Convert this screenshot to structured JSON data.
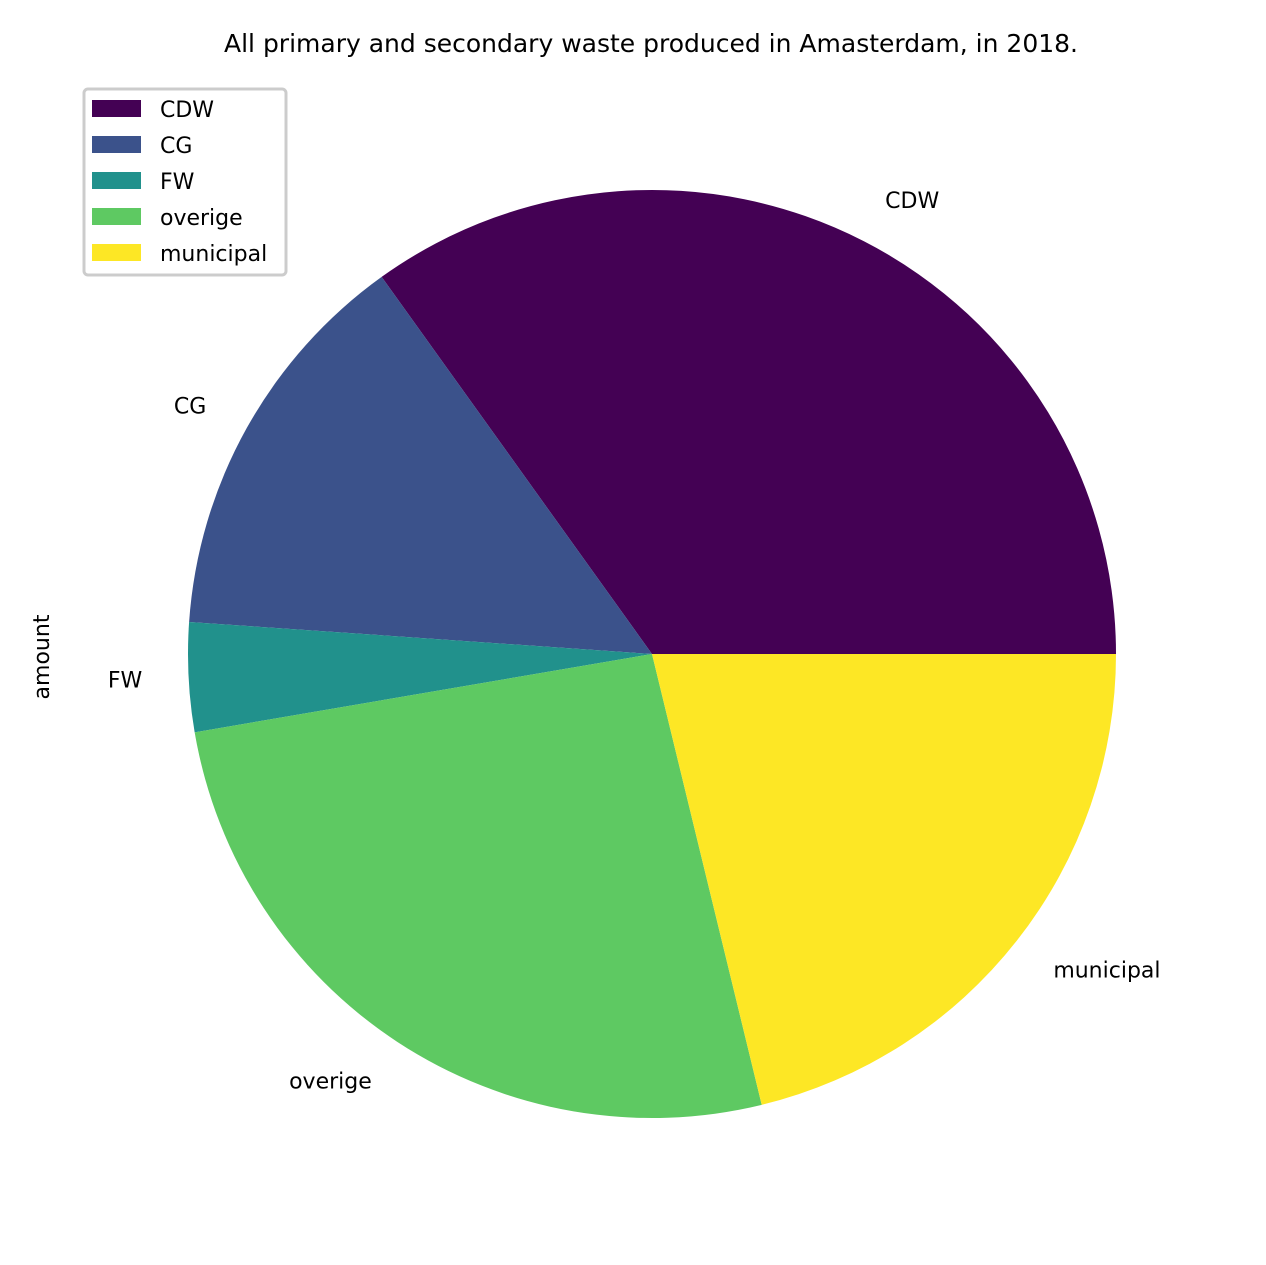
{
  "chart_data": {
    "type": "pie",
    "title": "All primary and secondary waste produced in Amasterdam, in 2018.",
    "ylabel": "amount",
    "categories": [
      "CDW",
      "CG",
      "FW",
      "overige",
      "municipal"
    ],
    "values": [
      34.9,
      14.0,
      3.8,
      26.1,
      21.2
    ],
    "start_angle_deg": 0,
    "direction": "counterclockwise",
    "colors": [
      "#440154",
      "#3b528b",
      "#21918c",
      "#5ec962",
      "#fde725"
    ],
    "legend": {
      "position": "upper-left",
      "entries": [
        "CDW",
        "CG",
        "FW",
        "overige",
        "municipal"
      ]
    }
  }
}
